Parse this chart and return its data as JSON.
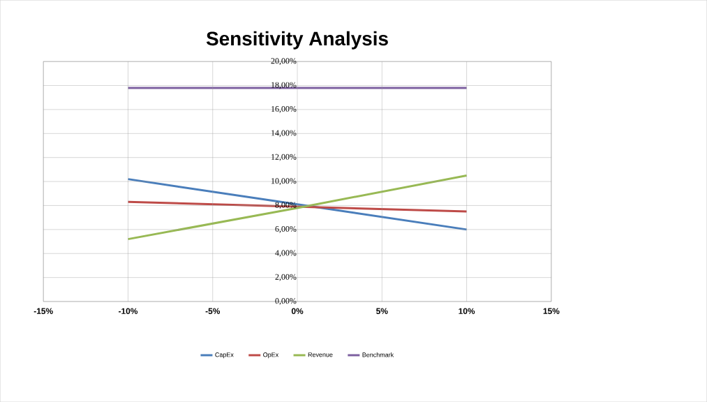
{
  "chart_data": {
    "type": "line",
    "title": "Sensitivity Analysis",
    "x": [
      -10,
      0,
      10
    ],
    "series": [
      {
        "name": "CapEx",
        "color": "#4a7ebb",
        "values": [
          10.2,
          8.1,
          6.0
        ]
      },
      {
        "name": "OpEx",
        "color": "#be4b48",
        "values": [
          8.3,
          7.9,
          7.5
        ]
      },
      {
        "name": "Revenue",
        "color": "#98b954",
        "values": [
          5.2,
          7.8,
          10.5
        ]
      },
      {
        "name": "Benchmark",
        "color": "#7d60a0",
        "values": [
          17.8,
          17.8,
          17.8
        ]
      }
    ],
    "xlim": [
      -15,
      15
    ],
    "xticks": [
      {
        "value": -15,
        "label": "-15%"
      },
      {
        "value": -10,
        "label": "-10%"
      },
      {
        "value": -5,
        "label": "-5%"
      },
      {
        "value": 0,
        "label": "0%"
      },
      {
        "value": 5,
        "label": "5%"
      },
      {
        "value": 10,
        "label": "10%"
      },
      {
        "value": 15,
        "label": "15%"
      }
    ],
    "ylim": [
      0,
      20
    ],
    "yticks": [
      {
        "value": 0,
        "label": "0,00%"
      },
      {
        "value": 2,
        "label": "2,00%"
      },
      {
        "value": 4,
        "label": "4,00%"
      },
      {
        "value": 6,
        "label": "6,00%"
      },
      {
        "value": 8,
        "label": "8,00%"
      },
      {
        "value": 10,
        "label": "10,00%"
      },
      {
        "value": 12,
        "label": "12,00%"
      },
      {
        "value": 14,
        "label": "14,00%"
      },
      {
        "value": 16,
        "label": "16,00%"
      },
      {
        "value": 18,
        "label": "18,00%"
      },
      {
        "value": 20,
        "label": "20,00%"
      }
    ],
    "grid": true,
    "legend": "bottom",
    "marker": "none",
    "line_style": "solid"
  }
}
